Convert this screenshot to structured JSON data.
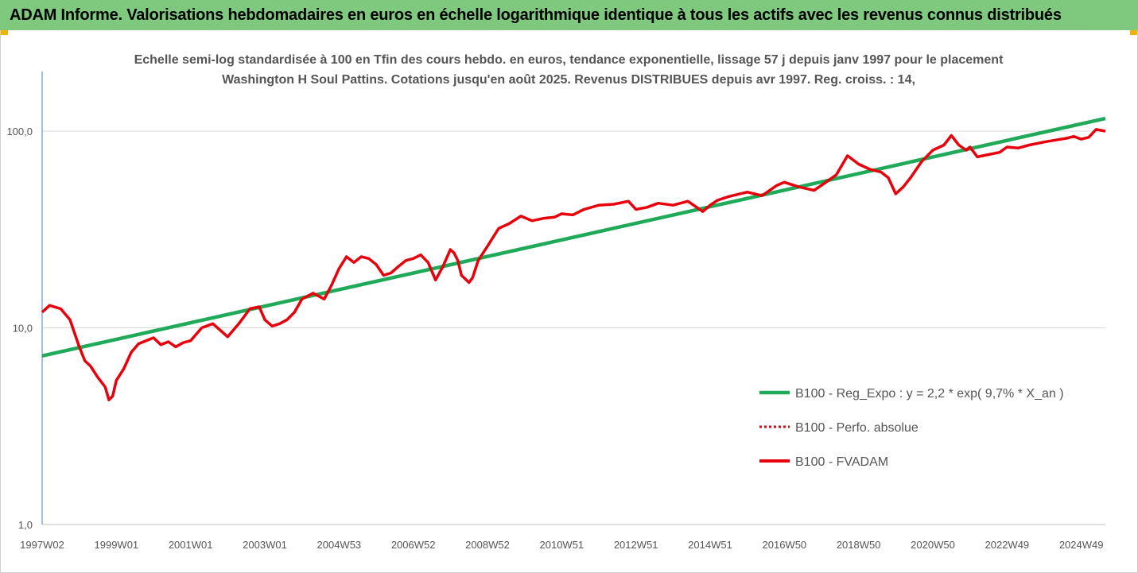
{
  "header": {
    "title": "ADAM Informe. Valorisations hebdomadaires en euros en échelle logarithmique identique à tous les actifs avec les revenus connus distribués"
  },
  "colors": {
    "banner": "#7fc97f",
    "trend": "#1faa59",
    "series": "#e8000b",
    "accent": "#f2b400"
  },
  "chart_data": {
    "type": "line",
    "title": "Echelle semi-log standardisée à 100 en Tfin des cours hebdo. en euros, tendance exponentielle, lissage 57 j depuis janv 1997 pour le placement Washington H Soul Pattins. Cotations jusqu'en août 2025. Revenus DISTRIBUES depuis avr 1997. Reg. croiss. : 14,",
    "y_scale": "log",
    "ylim": [
      1,
      200
    ],
    "y_ticks": [
      1,
      10,
      100
    ],
    "y_tick_labels": [
      "1,0",
      "10,0",
      "100,0"
    ],
    "xlim": [
      1997.0,
      2025.65
    ],
    "x_ticks": [
      1997.0,
      1999.0,
      2001.0,
      2003.0,
      2005.0,
      2007.0,
      2009.0,
      2011.0,
      2013.0,
      2015.0,
      2017.0,
      2019.0,
      2021.0,
      2023.0,
      2025.0
    ],
    "x_tick_labels": [
      "1997W02",
      "1999W01",
      "2001W01",
      "2003W01",
      "2004W53",
      "2006W52",
      "2008W52",
      "2010W51",
      "2012W51",
      "2014W51",
      "2016W50",
      "2018W50",
      "2020W50",
      "2022W49",
      "2024W49"
    ],
    "grid": "horizontal",
    "legend_position": "right",
    "legend": [
      "B100 - Reg_Expo : y = 2,2 * exp( 9,7% *  X_an )",
      "B100 - Perfo. absolue",
      "B100 - FVADAM"
    ],
    "series": [
      {
        "name": "B100 - Reg_Expo : y = 2,2 * exp( 9,7% *  X_an )",
        "style": "solid-green",
        "x": [
          1997.0,
          2025.65
        ],
        "y": [
          7.2,
          116
        ]
      },
      {
        "name": "B100 - FVADAM",
        "style": "solid-red",
        "x": [
          1997.0,
          1997.2,
          1997.5,
          1997.75,
          1998.0,
          1998.15,
          1998.3,
          1998.5,
          1998.7,
          1998.8,
          1998.9,
          1999.0,
          1999.2,
          1999.4,
          1999.6,
          1999.8,
          2000.0,
          2000.2,
          2000.4,
          2000.6,
          2000.8,
          2001.0,
          2001.3,
          2001.6,
          2002.0,
          2002.3,
          2002.6,
          2002.85,
          2003.0,
          2003.2,
          2003.4,
          2003.6,
          2003.8,
          2004.0,
          2004.3,
          2004.6,
          2004.8,
          2005.0,
          2005.2,
          2005.4,
          2005.6,
          2005.8,
          2006.0,
          2006.2,
          2006.4,
          2006.6,
          2006.8,
          2007.0,
          2007.2,
          2007.4,
          2007.6,
          2007.8,
          2008.0,
          2008.1,
          2008.2,
          2008.3,
          2008.5,
          2008.6,
          2008.75,
          2009.0,
          2009.3,
          2009.6,
          2009.9,
          2010.2,
          2010.5,
          2010.8,
          2011.0,
          2011.3,
          2011.6,
          2012.0,
          2012.4,
          2012.8,
          2013.0,
          2013.3,
          2013.6,
          2014.0,
          2014.4,
          2014.8,
          2015.0,
          2015.2,
          2015.5,
          2016.0,
          2016.4,
          2016.8,
          2017.0,
          2017.4,
          2017.8,
          2018.0,
          2018.4,
          2018.7,
          2019.0,
          2019.3,
          2019.6,
          2019.8,
          2020.0,
          2020.2,
          2020.4,
          2020.7,
          2021.0,
          2021.3,
          2021.5,
          2021.7,
          2021.9,
          2022.0,
          2022.2,
          2022.5,
          2022.8,
          2023.0,
          2023.3,
          2023.6,
          2024.0,
          2024.3,
          2024.6,
          2024.8,
          2025.0,
          2025.2,
          2025.4,
          2025.65
        ],
        "y": [
          12.0,
          13.0,
          12.5,
          11.0,
          8.0,
          6.8,
          6.4,
          5.6,
          5.0,
          4.3,
          4.5,
          5.4,
          6.2,
          7.5,
          8.3,
          8.6,
          8.9,
          8.2,
          8.5,
          8.0,
          8.4,
          8.6,
          10.0,
          10.5,
          9.0,
          10.5,
          12.5,
          12.8,
          11.0,
          10.2,
          10.5,
          11.0,
          12.0,
          14.0,
          15.0,
          14.0,
          16.5,
          20.0,
          23.0,
          21.5,
          23.0,
          22.5,
          21.0,
          18.5,
          19.0,
          20.5,
          22.0,
          22.5,
          23.5,
          21.5,
          17.5,
          20.5,
          25.0,
          24.0,
          22.0,
          18.5,
          17.0,
          18.0,
          22.0,
          26.0,
          32.0,
          34.0,
          37.0,
          35.0,
          36.0,
          36.5,
          38.0,
          37.5,
          40.0,
          42.0,
          42.5,
          44.0,
          40.0,
          41.0,
          43.0,
          42.0,
          44.0,
          39.0,
          42.0,
          44.5,
          46.5,
          49.0,
          47.0,
          53.0,
          55.0,
          52.0,
          50.0,
          53.0,
          60.0,
          75.0,
          68.0,
          64.0,
          62.0,
          58.0,
          48.0,
          52.0,
          58.0,
          70.0,
          80.0,
          85.0,
          95.0,
          85.0,
          80.0,
          83.0,
          74.0,
          76.0,
          78.0,
          83.0,
          82.0,
          85.0,
          88.0,
          90.0,
          92.0,
          94.0,
          91.0,
          93.0,
          102.0,
          100.0
        ]
      }
    ]
  }
}
